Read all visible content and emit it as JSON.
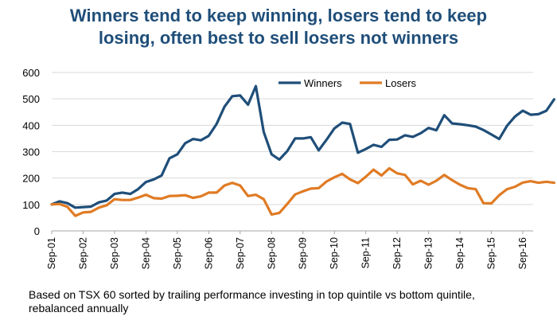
{
  "chart_data": {
    "type": "line",
    "title_lines": [
      "Winners tend to keep winning, losers tend to keep",
      "losing, often best to sell losers not winners"
    ],
    "xlabel": "",
    "ylabel": "",
    "ylim": [
      0,
      600
    ],
    "yticks": [
      0,
      100,
      200,
      300,
      400,
      500,
      600
    ],
    "x_tick_labels": [
      "Sep-01",
      "Sep-02",
      "Sep-03",
      "Sep-04",
      "Sep-05",
      "Sep-06",
      "Sep-07",
      "Sep-08",
      "Sep-09",
      "Sep-10",
      "Sep-11",
      "Sep-12",
      "Sep-13",
      "Sep-14",
      "Sep-15",
      "Sep-16"
    ],
    "x_start_year": 2001.67,
    "x_end_year": 2017.0,
    "grid": "horizontal",
    "legend_position": "top-right",
    "series": [
      {
        "name": "Winners",
        "color": "#1f4e79",
        "points": [
          [
            2001.67,
            100
          ],
          [
            2001.92,
            112
          ],
          [
            2002.17,
            105
          ],
          [
            2002.42,
            88
          ],
          [
            2002.67,
            90
          ],
          [
            2002.92,
            92
          ],
          [
            2003.17,
            108
          ],
          [
            2003.42,
            115
          ],
          [
            2003.67,
            140
          ],
          [
            2003.92,
            145
          ],
          [
            2004.17,
            140
          ],
          [
            2004.42,
            158
          ],
          [
            2004.67,
            185
          ],
          [
            2004.92,
            195
          ],
          [
            2005.17,
            210
          ],
          [
            2005.42,
            275
          ],
          [
            2005.67,
            290
          ],
          [
            2005.92,
            332
          ],
          [
            2006.17,
            348
          ],
          [
            2006.42,
            343
          ],
          [
            2006.67,
            360
          ],
          [
            2006.92,
            405
          ],
          [
            2007.17,
            470
          ],
          [
            2007.42,
            510
          ],
          [
            2007.67,
            513
          ],
          [
            2007.92,
            478
          ],
          [
            2008.17,
            548
          ],
          [
            2008.42,
            375
          ],
          [
            2008.67,
            290
          ],
          [
            2008.92,
            270
          ],
          [
            2009.17,
            302
          ],
          [
            2009.42,
            350
          ],
          [
            2009.67,
            350
          ],
          [
            2009.92,
            355
          ],
          [
            2010.17,
            305
          ],
          [
            2010.42,
            345
          ],
          [
            2010.67,
            388
          ],
          [
            2010.92,
            410
          ],
          [
            2011.17,
            405
          ],
          [
            2011.42,
            296
          ],
          [
            2011.67,
            310
          ],
          [
            2011.92,
            326
          ],
          [
            2012.17,
            318
          ],
          [
            2012.42,
            345
          ],
          [
            2012.67,
            346
          ],
          [
            2012.92,
            362
          ],
          [
            2013.17,
            356
          ],
          [
            2013.42,
            370
          ],
          [
            2013.67,
            390
          ],
          [
            2013.92,
            381
          ],
          [
            2014.17,
            438
          ],
          [
            2014.42,
            407
          ],
          [
            2014.67,
            404
          ],
          [
            2014.92,
            400
          ],
          [
            2015.17,
            395
          ],
          [
            2015.42,
            382
          ],
          [
            2015.67,
            365
          ],
          [
            2015.92,
            348
          ],
          [
            2016.17,
            398
          ],
          [
            2016.42,
            433
          ],
          [
            2016.67,
            455
          ],
          [
            2016.92,
            440
          ],
          [
            2017.17,
            442
          ],
          [
            2017.42,
            455
          ],
          [
            2017.67,
            498
          ]
        ]
      },
      {
        "name": "Losers",
        "color": "#e07b24",
        "points": [
          [
            2001.67,
            100
          ],
          [
            2001.92,
            102
          ],
          [
            2002.17,
            91
          ],
          [
            2002.42,
            57
          ],
          [
            2002.67,
            70
          ],
          [
            2002.92,
            72
          ],
          [
            2003.17,
            88
          ],
          [
            2003.42,
            97
          ],
          [
            2003.67,
            120
          ],
          [
            2003.92,
            117
          ],
          [
            2004.17,
            117
          ],
          [
            2004.42,
            126
          ],
          [
            2004.67,
            137
          ],
          [
            2004.92,
            124
          ],
          [
            2005.17,
            122
          ],
          [
            2005.42,
            132
          ],
          [
            2005.67,
            133
          ],
          [
            2005.92,
            135
          ],
          [
            2006.17,
            125
          ],
          [
            2006.42,
            131
          ],
          [
            2006.67,
            145
          ],
          [
            2006.92,
            145
          ],
          [
            2007.17,
            172
          ],
          [
            2007.42,
            182
          ],
          [
            2007.67,
            172
          ],
          [
            2007.92,
            132
          ],
          [
            2008.17,
            137
          ],
          [
            2008.42,
            120
          ],
          [
            2008.67,
            62
          ],
          [
            2008.92,
            68
          ],
          [
            2009.17,
            102
          ],
          [
            2009.42,
            138
          ],
          [
            2009.67,
            150
          ],
          [
            2009.92,
            160
          ],
          [
            2010.17,
            162
          ],
          [
            2010.42,
            187
          ],
          [
            2010.67,
            203
          ],
          [
            2010.92,
            216
          ],
          [
            2011.17,
            195
          ],
          [
            2011.42,
            181
          ],
          [
            2011.67,
            205
          ],
          [
            2011.92,
            232
          ],
          [
            2012.17,
            210
          ],
          [
            2012.42,
            237
          ],
          [
            2012.67,
            218
          ],
          [
            2012.92,
            212
          ],
          [
            2013.17,
            176
          ],
          [
            2013.42,
            190
          ],
          [
            2013.67,
            175
          ],
          [
            2013.92,
            190
          ],
          [
            2014.17,
            212
          ],
          [
            2014.42,
            192
          ],
          [
            2014.67,
            175
          ],
          [
            2014.92,
            162
          ],
          [
            2015.17,
            158
          ],
          [
            2015.42,
            105
          ],
          [
            2015.67,
            104
          ],
          [
            2015.92,
            135
          ],
          [
            2016.17,
            158
          ],
          [
            2016.42,
            167
          ],
          [
            2016.67,
            183
          ],
          [
            2016.92,
            188
          ],
          [
            2017.17,
            182
          ],
          [
            2017.42,
            186
          ],
          [
            2017.67,
            182
          ]
        ]
      }
    ]
  },
  "caption_lines": [
    "Based on TSX 60 sorted by trailing performance investing in top quintile vs bottom quintile,",
    "rebalanced annually"
  ]
}
